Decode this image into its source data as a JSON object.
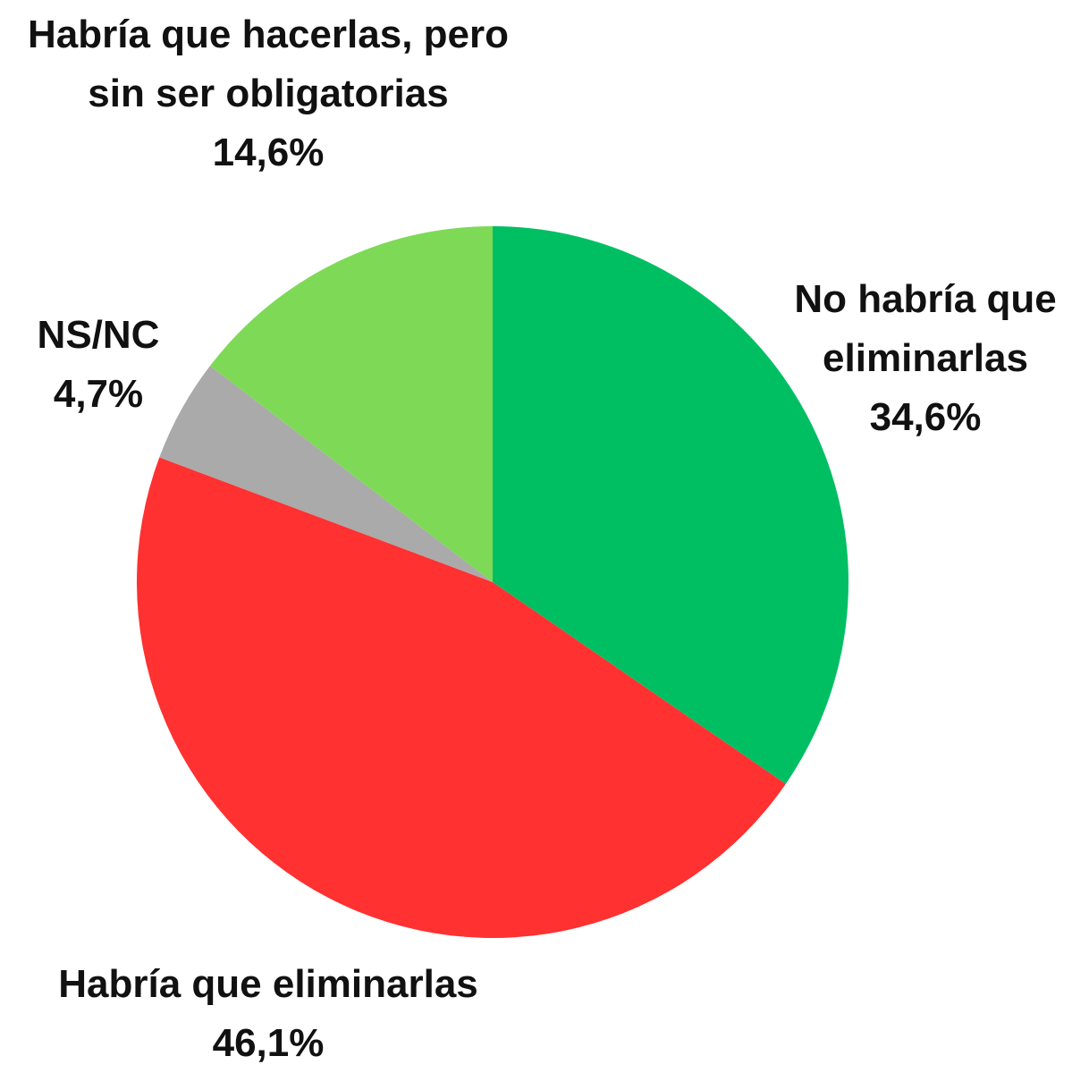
{
  "chart_data": {
    "type": "pie",
    "categories": [
      "No habría que eliminarlas",
      "Habría que eliminarlas",
      "NS/NC",
      "Habría que hacerlas, pero sin ser obligatorias"
    ],
    "values": [
      34.6,
      46.1,
      4.7,
      14.6
    ],
    "value_labels": [
      "34,6%",
      "46,1%",
      "4,7%",
      "14,6%"
    ],
    "colors": [
      "#00bf63",
      "#ff3131",
      "#aaaaaa",
      "#7ed957"
    ]
  }
}
